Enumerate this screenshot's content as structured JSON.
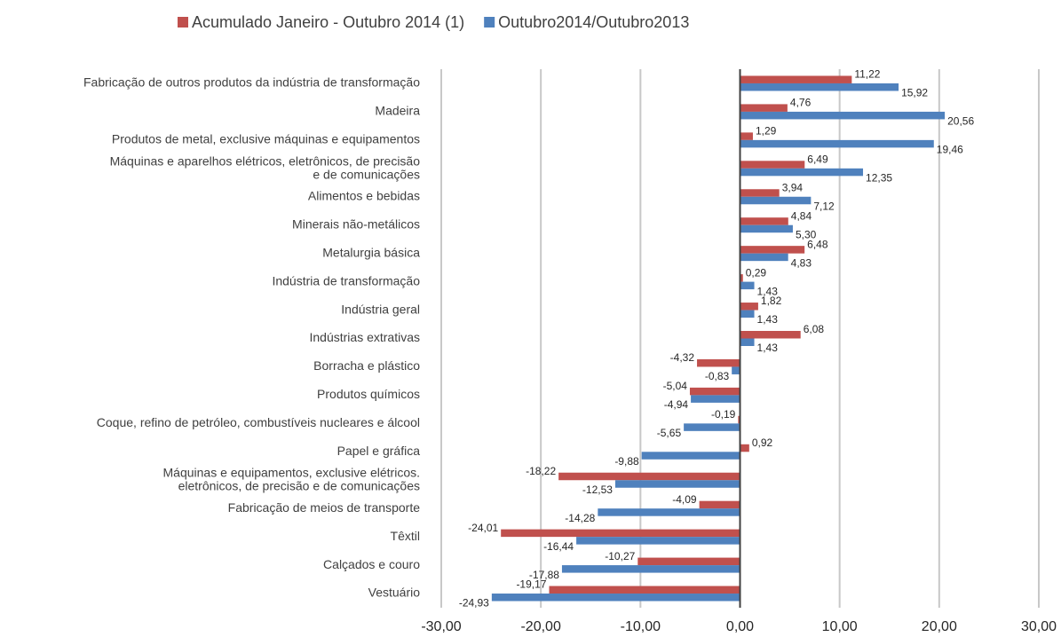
{
  "chart_data": {
    "type": "bar",
    "orientation": "horizontal",
    "categories": [
      "Fabricação de outros produtos da indústria de transformação",
      "Madeira",
      "Produtos de metal, exclusive máquinas e equipamentos",
      "Máquinas e aparelhos elétricos, eletrônicos, de precisão\ne de comunicações",
      "Alimentos e bebidas",
      "Minerais não-metálicos",
      "Metalurgia básica",
      "Indústria de transformação",
      "Indústria geral",
      "Indústrias extrativas",
      "Borracha e plástico",
      "Produtos químicos",
      "Coque, refino de petróleo, combustíveis nucleares e álcool",
      "Papel e gráfica",
      "Máquinas e equipamentos, exclusive elétricos.\neletrônicos, de precisão e de comunicações",
      "Fabricação de meios de transporte",
      "Têxtil",
      "Calçados e couro",
      "Vestuário"
    ],
    "series": [
      {
        "name": "Acumulado Janeiro - Outubro 2014 (1)",
        "color": "#c0504d",
        "values": [
          11.22,
          4.76,
          1.29,
          6.49,
          3.94,
          4.84,
          6.48,
          0.29,
          1.82,
          6.08,
          -4.32,
          -5.04,
          -0.19,
          0.92,
          -18.22,
          -4.09,
          -24.01,
          -10.27,
          -19.17
        ],
        "value_labels": [
          "11,22",
          "4,76",
          "1,29",
          "6,49",
          "3,94",
          "4,84",
          "6,48",
          "0,29",
          "1,82",
          "6,08",
          "-4,32",
          "-5,04",
          "-0,19",
          "0,92",
          "-18,22",
          "-4,09",
          "-24,01",
          "-10,27",
          "-19,17"
        ]
      },
      {
        "name": "Outubro2014/Outubro2013",
        "color": "#4f81bd",
        "values": [
          15.92,
          20.56,
          19.46,
          12.35,
          7.12,
          5.3,
          4.83,
          1.43,
          1.43,
          1.43,
          -0.83,
          -4.94,
          -5.65,
          -9.88,
          -12.53,
          -14.28,
          -16.44,
          -17.88,
          -24.93
        ],
        "value_labels": [
          "15,92",
          "20,56",
          "19,46",
          "12,35",
          "7,12",
          "5,30",
          "4,83",
          "1,43",
          "1,43",
          "1,43",
          "-0,83",
          "-4,94",
          "-5,65",
          "-9,88",
          "-12,53",
          "-14,28",
          "-16,44",
          "-17,88",
          "-24,93"
        ]
      }
    ],
    "xlim": [
      -30,
      30
    ],
    "xticks": [
      {
        "value": -30,
        "label": "-30,00"
      },
      {
        "value": -20,
        "label": "-20,00"
      },
      {
        "value": -10,
        "label": "-10,00"
      },
      {
        "value": 0,
        "label": "0,00"
      },
      {
        "value": 10,
        "label": "10,00"
      },
      {
        "value": 20,
        "label": "20,00"
      },
      {
        "value": 30,
        "label": "30,00"
      }
    ],
    "grid": true,
    "legend": "top"
  }
}
